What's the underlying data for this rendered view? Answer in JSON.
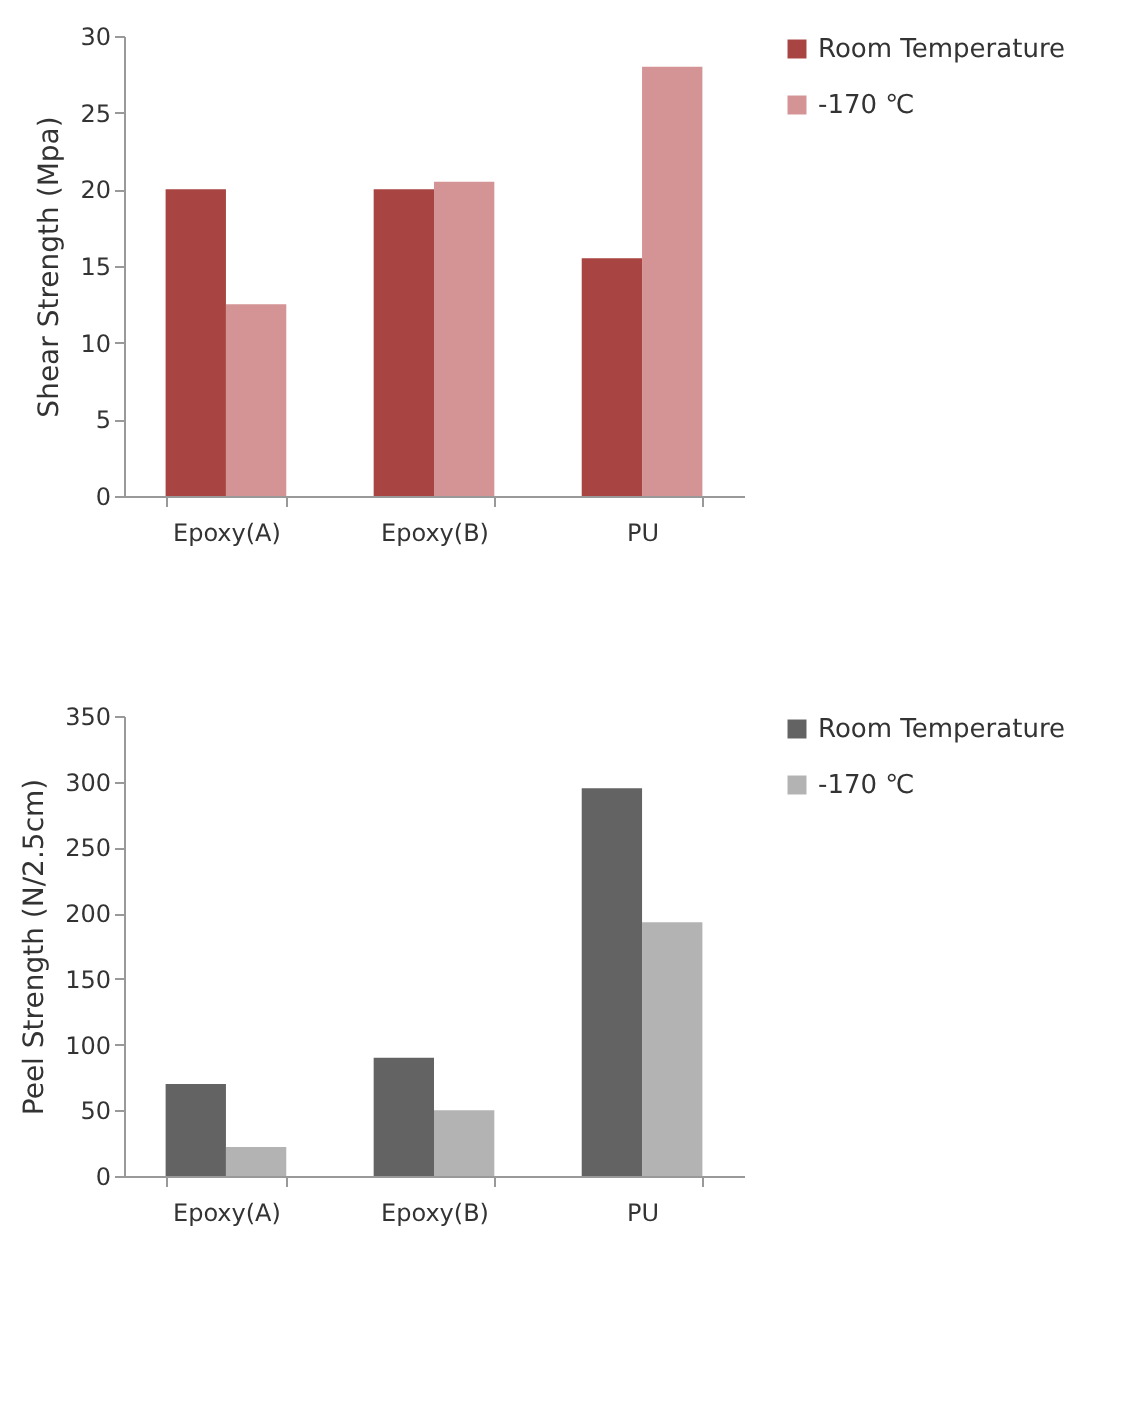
{
  "chart_data": [
    {
      "type": "bar",
      "ylabel": "Shear Strength (Mpa)",
      "categories": [
        "Epoxy(A)",
        "Epoxy(B)",
        "PU"
      ],
      "series": [
        {
          "name": "Room Temperature",
          "color": "#a84442",
          "values": [
            20,
            20,
            15.5
          ]
        },
        {
          "name": "-170 ℃",
          "color": "#d49394",
          "values": [
            12.5,
            20.5,
            28
          ]
        }
      ],
      "ylim": [
        0,
        30
      ],
      "yticks": [
        0,
        5,
        10,
        15,
        20,
        25,
        30
      ],
      "grid": false,
      "legend": "right"
    },
    {
      "type": "bar",
      "ylabel": "Peel Strength (N/2.5cm)",
      "categories": [
        "Epoxy(A)",
        "Epoxy(B)",
        "PU"
      ],
      "series": [
        {
          "name": "Room Temperature",
          "color": "#636363",
          "values": [
            70,
            90,
            295
          ]
        },
        {
          "name": "-170 ℃",
          "color": "#b3b3b3",
          "values": [
            22,
            50,
            193
          ]
        }
      ],
      "ylim": [
        0,
        350
      ],
      "yticks": [
        0,
        50,
        100,
        150,
        200,
        250,
        300,
        350
      ],
      "grid": false,
      "legend": "right"
    }
  ]
}
